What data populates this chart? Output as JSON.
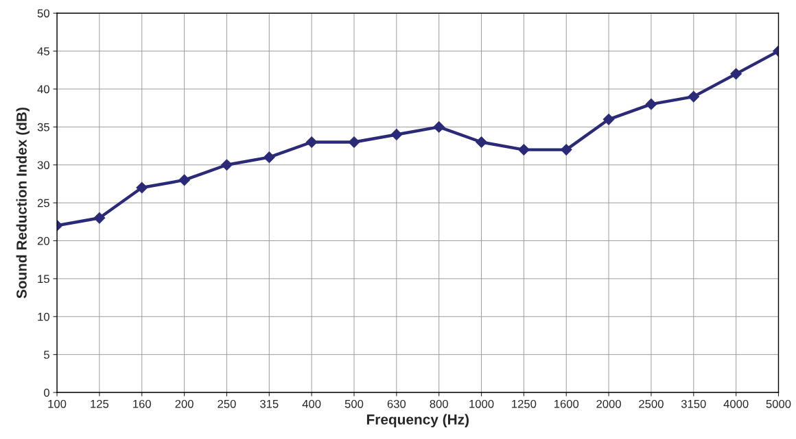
{
  "chart_data": {
    "type": "line",
    "xlabel": "Frequency (Hz)",
    "ylabel": "Sound Reduction Index (dB)",
    "categories": [
      "100",
      "125",
      "160",
      "200",
      "250",
      "315",
      "400",
      "500",
      "630",
      "800",
      "1000",
      "1250",
      "1600",
      "2000",
      "2500",
      "3150",
      "4000",
      "5000"
    ],
    "series": [
      {
        "color": "#2b2a78",
        "values": [
          22,
          23,
          27,
          28,
          30,
          31,
          33,
          33,
          34,
          35,
          33,
          32,
          32,
          36,
          38,
          39,
          42,
          45
        ]
      }
    ],
    "ylim": [
      0,
      50
    ],
    "yticks": [
      0,
      5,
      10,
      15,
      20,
      25,
      30,
      35,
      40,
      45,
      50
    ],
    "grid": true,
    "marker": "diamond",
    "line_style": "solid"
  }
}
